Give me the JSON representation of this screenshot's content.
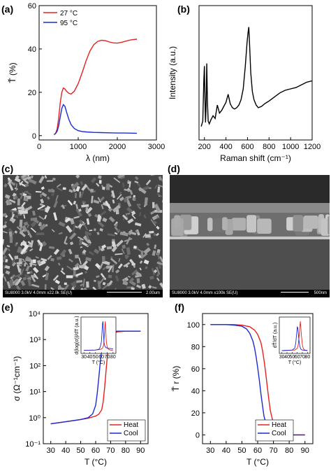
{
  "panels": {
    "a": {
      "label": "(a)"
    },
    "b": {
      "label": "(b)"
    },
    "c": {
      "label": "(c)",
      "caption_left": "SU8000 3.0kV 4.0mm x22.0k SE(U)",
      "caption_right": "2.00um"
    },
    "d": {
      "label": "(d)",
      "caption_left": "SU8000 3.0kV 4.0mm x100k SE(U)",
      "caption_right": "500nm"
    },
    "e": {
      "label": "(e)"
    },
    "f": {
      "label": "(f)"
    }
  },
  "colors": {
    "red": "#e8201f",
    "blue": "#1a2ad6",
    "black": "#000000",
    "sem_bg": "#3a3a3a"
  },
  "chart_data": [
    {
      "panel": "a",
      "type": "line",
      "xlabel": "λ (nm)",
      "ylabel": "Ť (%)",
      "xlim": [
        0,
        3000
      ],
      "ylim": [
        -2,
        60
      ],
      "xticks": [
        0,
        1000,
        2000,
        3000
      ],
      "xtick_labels": [
        "0",
        "1000",
        "2000",
        "3000"
      ],
      "yticks": [
        0,
        20,
        40,
        60
      ],
      "ytick_labels": [
        "0",
        "20",
        "40",
        "60"
      ],
      "legend_position": "top-left",
      "series": [
        {
          "name": "27 °C",
          "color": "#e8201f",
          "x": [
            380,
            420,
            460,
            500,
            540,
            580,
            620,
            660,
            700,
            760,
            820,
            900,
            1000,
            1100,
            1200,
            1300,
            1400,
            1500,
            1600,
            1700,
            1800,
            1900,
            2000,
            2100,
            2200,
            2300,
            2400,
            2500
          ],
          "y": [
            0.5,
            1.0,
            3.0,
            8.0,
            15.0,
            20.0,
            22.0,
            21.5,
            20.5,
            19.5,
            19.2,
            20.5,
            24.0,
            29.0,
            34.5,
            39.0,
            42.0,
            43.5,
            44.0,
            43.8,
            43.2,
            42.8,
            42.7,
            43.0,
            43.5,
            44.0,
            44.3,
            44.5
          ]
        },
        {
          "name": "95 °C",
          "color": "#1a2ad6",
          "x": [
            380,
            420,
            460,
            500,
            540,
            580,
            620,
            660,
            700,
            760,
            820,
            900,
            1000,
            1100,
            1200,
            1400,
            1600,
            1800,
            2000,
            2200,
            2500
          ],
          "y": [
            0.5,
            0.9,
            2.0,
            4.5,
            8.5,
            12.5,
            14.3,
            13.5,
            11.0,
            7.5,
            5.0,
            3.3,
            2.3,
            1.9,
            1.7,
            1.5,
            1.4,
            1.3,
            1.2,
            1.2,
            1.1
          ]
        }
      ]
    },
    {
      "panel": "b",
      "type": "line",
      "xlabel": "Raman shift (cm⁻¹)",
      "ylabel": "Intensity (a.u.)",
      "xlim": [
        150,
        1200
      ],
      "ylim": [
        0,
        1
      ],
      "xticks": [
        200,
        400,
        600,
        800,
        1000,
        1200
      ],
      "xtick_labels": [
        "200",
        "400",
        "600",
        "800",
        "1000",
        "1200"
      ],
      "series": [
        {
          "name": "",
          "color": "#000000",
          "x": [
            170,
            185,
            195,
            200,
            205,
            210,
            215,
            222,
            228,
            235,
            245,
            260,
            280,
            300,
            320,
            340,
            360,
            380,
            400,
            420,
            440,
            460,
            480,
            500,
            520,
            540,
            560,
            580,
            595,
            605,
            612,
            620,
            630,
            645,
            660,
            680,
            700,
            730,
            760,
            800,
            850,
            900,
            950,
            1000,
            1050,
            1100,
            1150,
            1200
          ],
          "y": [
            0.1,
            0.14,
            0.45,
            0.55,
            0.3,
            0.13,
            0.22,
            0.57,
            0.3,
            0.14,
            0.12,
            0.15,
            0.18,
            0.16,
            0.26,
            0.2,
            0.22,
            0.25,
            0.28,
            0.34,
            0.27,
            0.24,
            0.23,
            0.24,
            0.26,
            0.3,
            0.38,
            0.55,
            0.72,
            0.8,
            0.84,
            0.7,
            0.5,
            0.36,
            0.3,
            0.26,
            0.24,
            0.25,
            0.27,
            0.29,
            0.32,
            0.35,
            0.37,
            0.38,
            0.39,
            0.41,
            0.43,
            0.44
          ]
        }
      ]
    },
    {
      "panel": "e",
      "type": "line",
      "xlabel": "T (°C)",
      "ylabel": "σ (Ω⁻¹cm⁻¹)",
      "yscale": "log",
      "xlim": [
        25,
        95
      ],
      "ylim": [
        0.1,
        10000
      ],
      "xticks": [
        30,
        40,
        50,
        60,
        70,
        80,
        90
      ],
      "xtick_labels": [
        "30",
        "40",
        "50",
        "60",
        "70",
        "80",
        "90"
      ],
      "yticks": [
        0.1,
        1,
        10,
        100,
        1000,
        10000
      ],
      "ytick_labels": [
        "10⁻¹",
        "10⁰",
        "10¹",
        "10²",
        "10³",
        "10⁴"
      ],
      "legend_position": "bottom-right",
      "series": [
        {
          "name": "Heat",
          "color": "#e8201f",
          "x": [
            30,
            40,
            50,
            55,
            60,
            62,
            64,
            65,
            66,
            67,
            68,
            69,
            70,
            72,
            75,
            80,
            90
          ],
          "y": [
            0.58,
            0.7,
            0.85,
            0.95,
            1.15,
            1.35,
            2.0,
            4.0,
            15,
            70,
            300,
            800,
            1300,
            1800,
            2000,
            2100,
            2100
          ]
        },
        {
          "name": "Cool",
          "color": "#1a2ad6",
          "x": [
            30,
            40,
            50,
            55,
            58,
            60,
            61,
            62,
            63,
            64,
            65,
            66,
            68,
            70,
            75,
            80,
            90
          ],
          "y": [
            0.58,
            0.7,
            0.85,
            1.0,
            1.4,
            3.0,
            8.0,
            30,
            120,
            400,
            900,
            1300,
            1800,
            2000,
            2100,
            2100,
            2100
          ]
        }
      ]
    },
    {
      "panel": "e-inset",
      "type": "line",
      "xlabel": "T (°C)",
      "ylabel": "d(log(σ))/dT (a.u.)",
      "xlim": [
        25,
        85
      ],
      "xticks": [
        30,
        40,
        50,
        60,
        70,
        80
      ],
      "xtick_labels": [
        "30",
        "40",
        "50",
        "60",
        "70",
        "80"
      ],
      "series": [
        {
          "name": "Heat",
          "color": "#e8201f",
          "x": [
            30,
            50,
            58,
            62,
            64,
            65,
            66,
            66.8,
            67.5,
            68.5,
            70,
            72,
            75,
            80
          ],
          "y": [
            0.01,
            0.02,
            0.04,
            0.08,
            0.2,
            0.45,
            0.85,
            1.0,
            0.7,
            0.3,
            0.12,
            0.05,
            0.02,
            0.01
          ]
        },
        {
          "name": "Cool",
          "color": "#1a2ad6",
          "x": [
            30,
            50,
            56,
            58,
            60,
            61,
            62,
            62.8,
            63.5,
            64.5,
            66,
            68,
            72,
            80
          ],
          "y": [
            0.01,
            0.02,
            0.05,
            0.12,
            0.3,
            0.6,
            0.92,
            1.0,
            0.65,
            0.28,
            0.15,
            0.1,
            0.08,
            0.06
          ]
        }
      ]
    },
    {
      "panel": "f",
      "type": "line",
      "xlabel": "T (°C)",
      "ylabel": "Ť r (%)",
      "xlim": [
        25,
        95
      ],
      "ylim": [
        -8,
        110
      ],
      "xticks": [
        30,
        40,
        50,
        60,
        70,
        80,
        90
      ],
      "xtick_labels": [
        "30",
        "40",
        "50",
        "60",
        "70",
        "80",
        "90"
      ],
      "yticks": [
        0,
        20,
        40,
        60,
        80,
        100
      ],
      "ytick_labels": [
        "0",
        "20",
        "40",
        "60",
        "80",
        "100"
      ],
      "legend_position": "bottom-left",
      "series": [
        {
          "name": "Heat",
          "color": "#e8201f",
          "x": [
            30,
            40,
            45,
            50,
            55,
            58,
            60,
            62,
            63,
            64,
            65,
            66,
            67,
            68,
            70,
            72,
            75,
            80,
            90
          ],
          "y": [
            100,
            100,
            100,
            99.5,
            98,
            95,
            91,
            84,
            77,
            68,
            57,
            45,
            33,
            22,
            10,
            4,
            1,
            0,
            0
          ]
        },
        {
          "name": "Cool",
          "color": "#1a2ad6",
          "x": [
            30,
            40,
            45,
            50,
            53,
            55,
            57,
            58,
            59,
            60,
            61,
            62,
            63,
            64,
            66,
            68,
            70,
            75,
            80,
            90
          ],
          "y": [
            100,
            100,
            99.5,
            98.5,
            96,
            92,
            85,
            79,
            71,
            61,
            50,
            38,
            27,
            17,
            7,
            3,
            1,
            0,
            0,
            0
          ]
        }
      ]
    },
    {
      "panel": "f-inset",
      "type": "line",
      "xlabel": "T (°C)",
      "ylabel": "dŤ/dT (a.u.)",
      "xlim": [
        25,
        85
      ],
      "xticks": [
        30,
        40,
        50,
        60,
        70,
        80
      ],
      "xtick_labels": [
        "30",
        "40",
        "50",
        "60",
        "70",
        "80"
      ],
      "series": [
        {
          "name": "Heat",
          "color": "#e8201f",
          "x": [
            30,
            55,
            60,
            62,
            64,
            65,
            66,
            67,
            68,
            70,
            72,
            75,
            80
          ],
          "y": [
            0,
            0.02,
            0.08,
            0.2,
            0.55,
            0.8,
            1.0,
            0.8,
            0.55,
            0.2,
            0.06,
            0.02,
            0
          ]
        },
        {
          "name": "Cool",
          "color": "#1a2ad6",
          "x": [
            30,
            50,
            55,
            57,
            59,
            60,
            61,
            62,
            63,
            65,
            67,
            70,
            80
          ],
          "y": [
            0,
            0.02,
            0.08,
            0.25,
            0.6,
            0.82,
            0.78,
            0.6,
            0.4,
            0.15,
            0.05,
            0.02,
            0
          ]
        }
      ]
    }
  ]
}
